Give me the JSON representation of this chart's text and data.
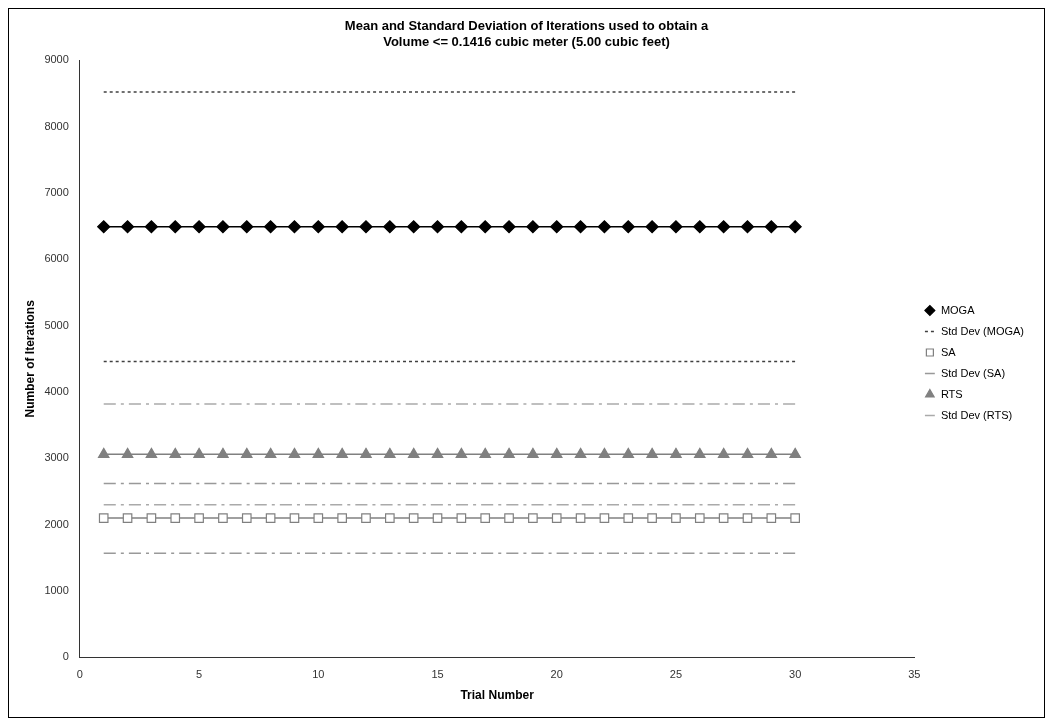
{
  "chart_data": {
    "type": "line",
    "title": "Mean and Standard Deviation of Iterations used to obtain a\nVolume <= 0.1416 cubic meter (5.00 cubic feet)",
    "xlabel": "Trial Number",
    "ylabel": "Number of Iterations",
    "x": [
      1,
      2,
      3,
      4,
      5,
      6,
      7,
      8,
      9,
      10,
      11,
      12,
      13,
      14,
      15,
      16,
      17,
      18,
      19,
      20,
      21,
      22,
      23,
      24,
      25,
      26,
      27,
      28,
      29,
      30
    ],
    "xlim": [
      0,
      35
    ],
    "xticks": [
      0,
      5,
      10,
      15,
      20,
      25,
      30,
      35
    ],
    "ylim": [
      0,
      9000
    ],
    "yticks": [
      0,
      1000,
      2000,
      3000,
      4000,
      5000,
      6000,
      7000,
      8000,
      9000
    ],
    "grid": false,
    "legend": "right",
    "series": [
      {
        "name": "MOGA",
        "color": "#000000",
        "marker": "diamond",
        "line_style": "solid",
        "values": [
          6490,
          6490,
          6490,
          6490,
          6490,
          6490,
          6490,
          6490,
          6490,
          6490,
          6490,
          6490,
          6490,
          6490,
          6490,
          6490,
          6490,
          6490,
          6490,
          6490,
          6490,
          6490,
          6490,
          6490,
          6490,
          6490,
          6490,
          6490,
          6490,
          6490
        ]
      },
      {
        "name": "Std Dev (MOGA)",
        "color": "#404040",
        "marker": "none",
        "line_style": "dotted",
        "values": [
          8520,
          8520,
          8520,
          8520,
          8520,
          8520,
          8520,
          8520,
          8520,
          8520,
          8520,
          8520,
          8520,
          8520,
          8520,
          8520,
          8520,
          8520,
          8520,
          8520,
          8520,
          8520,
          8520,
          8520,
          8520,
          8520,
          8520,
          8520,
          8520,
          8520
        ]
      },
      {
        "name": null,
        "color": "#404040",
        "marker": "none",
        "line_style": "dotted",
        "values": [
          4460,
          4460,
          4460,
          4460,
          4460,
          4460,
          4460,
          4460,
          4460,
          4460,
          4460,
          4460,
          4460,
          4460,
          4460,
          4460,
          4460,
          4460,
          4460,
          4460,
          4460,
          4460,
          4460,
          4460,
          4460,
          4460,
          4460,
          4460,
          4460,
          4460
        ]
      },
      {
        "name": "SA",
        "color": "#808080",
        "marker": "square",
        "line_style": "solid",
        "values": [
          2100,
          2100,
          2100,
          2100,
          2100,
          2100,
          2100,
          2100,
          2100,
          2100,
          2100,
          2100,
          2100,
          2100,
          2100,
          2100,
          2100,
          2100,
          2100,
          2100,
          2100,
          2100,
          2100,
          2100,
          2100,
          2100,
          2100,
          2100,
          2100,
          2100
        ]
      },
      {
        "name": "Std Dev (SA)",
        "color": "#999999",
        "marker": "none",
        "line_style": "dashed",
        "values": [
          2620,
          2620,
          2620,
          2620,
          2620,
          2620,
          2620,
          2620,
          2620,
          2620,
          2620,
          2620,
          2620,
          2620,
          2620,
          2620,
          2620,
          2620,
          2620,
          2620,
          2620,
          2620,
          2620,
          2620,
          2620,
          2620,
          2620,
          2620,
          2620,
          2620
        ]
      },
      {
        "name": null,
        "color": "#999999",
        "marker": "none",
        "line_style": "dashed",
        "values": [
          1570,
          1570,
          1570,
          1570,
          1570,
          1570,
          1570,
          1570,
          1570,
          1570,
          1570,
          1570,
          1570,
          1570,
          1570,
          1570,
          1570,
          1570,
          1570,
          1570,
          1570,
          1570,
          1570,
          1570,
          1570,
          1570,
          1570,
          1570,
          1570,
          1570
        ]
      },
      {
        "name": "RTS",
        "color": "#808080",
        "marker": "triangle",
        "line_style": "solid",
        "values": [
          3060,
          3060,
          3060,
          3060,
          3060,
          3060,
          3060,
          3060,
          3060,
          3060,
          3060,
          3060,
          3060,
          3060,
          3060,
          3060,
          3060,
          3060,
          3060,
          3060,
          3060,
          3060,
          3060,
          3060,
          3060,
          3060,
          3060,
          3060,
          3060,
          3060
        ]
      },
      {
        "name": "Std Dev (RTS)",
        "color": "#aaaaaa",
        "marker": "none",
        "line_style": "dashed",
        "values": [
          3820,
          3820,
          3820,
          3820,
          3820,
          3820,
          3820,
          3820,
          3820,
          3820,
          3820,
          3820,
          3820,
          3820,
          3820,
          3820,
          3820,
          3820,
          3820,
          3820,
          3820,
          3820,
          3820,
          3820,
          3820,
          3820,
          3820,
          3820,
          3820,
          3820
        ]
      },
      {
        "name": null,
        "color": "#aaaaaa",
        "marker": "none",
        "line_style": "dashed",
        "values": [
          2300,
          2300,
          2300,
          2300,
          2300,
          2300,
          2300,
          2300,
          2300,
          2300,
          2300,
          2300,
          2300,
          2300,
          2300,
          2300,
          2300,
          2300,
          2300,
          2300,
          2300,
          2300,
          2300,
          2300,
          2300,
          2300,
          2300,
          2300,
          2300,
          2300
        ]
      }
    ]
  }
}
